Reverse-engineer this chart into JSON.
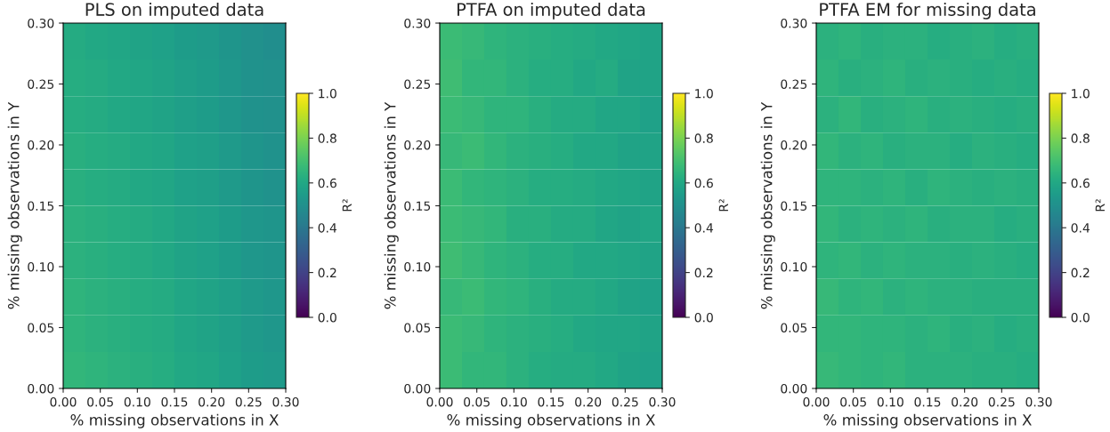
{
  "chart_data": [
    {
      "type": "heatmap",
      "title": "PLS on imputed data",
      "xlabel": "% missing observations in X",
      "ylabel": "% missing observations in Y",
      "clabel": "R²",
      "x": [
        0.015,
        0.045,
        0.075,
        0.105,
        0.135,
        0.165,
        0.195,
        0.225,
        0.255,
        0.285
      ],
      "y": [
        0.285,
        0.255,
        0.225,
        0.195,
        0.165,
        0.135,
        0.105,
        0.075,
        0.045,
        0.015
      ],
      "cells": [
        [
          0.61,
          0.6,
          0.59,
          0.58,
          0.57,
          0.55,
          0.54,
          0.52,
          0.5,
          0.49
        ],
        [
          0.62,
          0.61,
          0.6,
          0.59,
          0.58,
          0.56,
          0.55,
          0.53,
          0.51,
          0.5
        ],
        [
          0.62,
          0.61,
          0.6,
          0.59,
          0.58,
          0.56,
          0.55,
          0.53,
          0.51,
          0.5
        ],
        [
          0.63,
          0.62,
          0.61,
          0.6,
          0.59,
          0.57,
          0.56,
          0.54,
          0.52,
          0.51
        ],
        [
          0.63,
          0.62,
          0.61,
          0.6,
          0.59,
          0.57,
          0.56,
          0.54,
          0.52,
          0.51
        ],
        [
          0.64,
          0.63,
          0.62,
          0.61,
          0.6,
          0.58,
          0.57,
          0.55,
          0.53,
          0.52
        ],
        [
          0.64,
          0.63,
          0.62,
          0.61,
          0.6,
          0.58,
          0.57,
          0.55,
          0.53,
          0.52
        ],
        [
          0.65,
          0.64,
          0.63,
          0.62,
          0.61,
          0.59,
          0.58,
          0.56,
          0.54,
          0.53
        ],
        [
          0.65,
          0.64,
          0.63,
          0.62,
          0.61,
          0.59,
          0.58,
          0.56,
          0.54,
          0.53
        ],
        [
          0.66,
          0.65,
          0.64,
          0.63,
          0.62,
          0.6,
          0.59,
          0.57,
          0.55,
          0.54
        ]
      ],
      "clim": [
        0,
        1
      ],
      "cticks": [
        {
          "value": 0,
          "label": "0.0"
        },
        {
          "value": 0.2,
          "label": "0.2"
        },
        {
          "value": 0.4,
          "label": "0.4"
        },
        {
          "value": 0.6,
          "label": "0.6"
        },
        {
          "value": 0.8,
          "label": "0.8"
        },
        {
          "value": 1,
          "label": "1.0"
        }
      ],
      "xlim": [
        0,
        0.3
      ],
      "ylim": [
        0,
        0.3
      ],
      "xticks": [
        {
          "value": 0,
          "label": "0.00"
        },
        {
          "value": 0.05,
          "label": "0.05"
        },
        {
          "value": 0.1,
          "label": "0.10"
        },
        {
          "value": 0.15,
          "label": "0.15"
        },
        {
          "value": 0.2,
          "label": "0.20"
        },
        {
          "value": 0.25,
          "label": "0.25"
        },
        {
          "value": 0.3,
          "label": "0.30"
        }
      ],
      "yticks": [
        {
          "value": 0,
          "label": "0.00"
        },
        {
          "value": 0.05,
          "label": "0.05"
        },
        {
          "value": 0.1,
          "label": "0.10"
        },
        {
          "value": 0.15,
          "label": "0.15"
        },
        {
          "value": 0.2,
          "label": "0.20"
        },
        {
          "value": 0.25,
          "label": "0.25"
        },
        {
          "value": 0.3,
          "label": "0.30"
        }
      ]
    },
    {
      "type": "heatmap",
      "title": "PTFA on imputed data",
      "xlabel": "% missing observations in X",
      "ylabel": "% missing observations in Y",
      "clabel": "R²",
      "x": [
        0.015,
        0.045,
        0.075,
        0.105,
        0.135,
        0.165,
        0.195,
        0.225,
        0.255,
        0.285
      ],
      "y": [
        0.285,
        0.255,
        0.225,
        0.195,
        0.165,
        0.135,
        0.105,
        0.075,
        0.045,
        0.015
      ],
      "cells": [
        [
          0.68,
          0.67,
          0.65,
          0.64,
          0.63,
          0.62,
          0.61,
          0.6,
          0.59,
          0.58
        ],
        [
          0.69,
          0.66,
          0.66,
          0.64,
          0.62,
          0.62,
          0.6,
          0.61,
          0.58,
          0.58
        ],
        [
          0.68,
          0.67,
          0.65,
          0.65,
          0.63,
          0.61,
          0.61,
          0.59,
          0.59,
          0.57
        ],
        [
          0.67,
          0.68,
          0.66,
          0.64,
          0.63,
          0.62,
          0.6,
          0.6,
          0.58,
          0.58
        ],
        [
          0.68,
          0.66,
          0.65,
          0.64,
          0.62,
          0.62,
          0.61,
          0.6,
          0.59,
          0.58
        ],
        [
          0.68,
          0.67,
          0.66,
          0.63,
          0.63,
          0.61,
          0.61,
          0.59,
          0.58,
          0.59
        ],
        [
          0.69,
          0.67,
          0.65,
          0.64,
          0.62,
          0.62,
          0.6,
          0.6,
          0.59,
          0.58
        ],
        [
          0.67,
          0.68,
          0.66,
          0.65,
          0.63,
          0.61,
          0.61,
          0.6,
          0.58,
          0.57
        ],
        [
          0.68,
          0.67,
          0.65,
          0.64,
          0.63,
          0.62,
          0.6,
          0.59,
          0.59,
          0.58
        ],
        [
          0.68,
          0.66,
          0.66,
          0.64,
          0.62,
          0.61,
          0.61,
          0.6,
          0.58,
          0.57
        ]
      ],
      "clim": [
        0,
        1
      ],
      "cticks": [
        {
          "value": 0,
          "label": "0.0"
        },
        {
          "value": 0.2,
          "label": "0.2"
        },
        {
          "value": 0.4,
          "label": "0.4"
        },
        {
          "value": 0.6,
          "label": "0.6"
        },
        {
          "value": 0.8,
          "label": "0.8"
        },
        {
          "value": 1,
          "label": "1.0"
        }
      ],
      "xlim": [
        0,
        0.3
      ],
      "ylim": [
        0,
        0.3
      ],
      "xticks": [
        {
          "value": 0,
          "label": "0.00"
        },
        {
          "value": 0.05,
          "label": "0.05"
        },
        {
          "value": 0.1,
          "label": "0.10"
        },
        {
          "value": 0.15,
          "label": "0.15"
        },
        {
          "value": 0.2,
          "label": "0.20"
        },
        {
          "value": 0.25,
          "label": "0.25"
        },
        {
          "value": 0.3,
          "label": "0.30"
        }
      ],
      "yticks": [
        {
          "value": 0,
          "label": "0.00"
        },
        {
          "value": 0.05,
          "label": "0.05"
        },
        {
          "value": 0.1,
          "label": "0.10"
        },
        {
          "value": 0.15,
          "label": "0.15"
        },
        {
          "value": 0.2,
          "label": "0.20"
        },
        {
          "value": 0.25,
          "label": "0.25"
        },
        {
          "value": 0.3,
          "label": "0.30"
        }
      ]
    },
    {
      "type": "heatmap",
      "title": "PTFA EM for missing data",
      "xlabel": "% missing observations in X",
      "ylabel": "% missing observations in Y",
      "clabel": "R²",
      "x": [
        0.015,
        0.045,
        0.075,
        0.105,
        0.135,
        0.165,
        0.195,
        0.225,
        0.255,
        0.285
      ],
      "y": [
        0.285,
        0.255,
        0.225,
        0.195,
        0.165,
        0.135,
        0.105,
        0.075,
        0.045,
        0.015
      ],
      "cells": [
        [
          0.64,
          0.65,
          0.63,
          0.64,
          0.64,
          0.62,
          0.63,
          0.64,
          0.62,
          0.63
        ],
        [
          0.65,
          0.63,
          0.64,
          0.65,
          0.63,
          0.64,
          0.63,
          0.62,
          0.63,
          0.62
        ],
        [
          0.64,
          0.66,
          0.63,
          0.64,
          0.65,
          0.63,
          0.64,
          0.63,
          0.62,
          0.63
        ],
        [
          0.66,
          0.64,
          0.65,
          0.63,
          0.64,
          0.64,
          0.62,
          0.64,
          0.63,
          0.62
        ],
        [
          0.65,
          0.65,
          0.64,
          0.65,
          0.63,
          0.65,
          0.64,
          0.63,
          0.64,
          0.63
        ],
        [
          0.66,
          0.64,
          0.65,
          0.64,
          0.65,
          0.63,
          0.64,
          0.64,
          0.62,
          0.63
        ],
        [
          0.65,
          0.66,
          0.64,
          0.65,
          0.64,
          0.64,
          0.63,
          0.64,
          0.63,
          0.62
        ],
        [
          0.67,
          0.65,
          0.66,
          0.64,
          0.65,
          0.64,
          0.64,
          0.63,
          0.63,
          0.63
        ],
        [
          0.66,
          0.66,
          0.65,
          0.65,
          0.64,
          0.65,
          0.63,
          0.64,
          0.62,
          0.63
        ],
        [
          0.67,
          0.66,
          0.65,
          0.66,
          0.64,
          0.64,
          0.64,
          0.63,
          0.63,
          0.62
        ]
      ],
      "clim": [
        0,
        1
      ],
      "cticks": [
        {
          "value": 0,
          "label": "0.0"
        },
        {
          "value": 0.2,
          "label": "0.2"
        },
        {
          "value": 0.4,
          "label": "0.4"
        },
        {
          "value": 0.6,
          "label": "0.6"
        },
        {
          "value": 0.8,
          "label": "0.8"
        },
        {
          "value": 1,
          "label": "1.0"
        }
      ],
      "xlim": [
        0,
        0.3
      ],
      "ylim": [
        0,
        0.3
      ],
      "xticks": [
        {
          "value": 0,
          "label": "0.00"
        },
        {
          "value": 0.05,
          "label": "0.05"
        },
        {
          "value": 0.1,
          "label": "0.10"
        },
        {
          "value": 0.15,
          "label": "0.15"
        },
        {
          "value": 0.2,
          "label": "0.20"
        },
        {
          "value": 0.25,
          "label": "0.25"
        },
        {
          "value": 0.3,
          "label": "0.30"
        }
      ],
      "yticks": [
        {
          "value": 0,
          "label": "0.00"
        },
        {
          "value": 0.05,
          "label": "0.05"
        },
        {
          "value": 0.1,
          "label": "0.10"
        },
        {
          "value": 0.15,
          "label": "0.15"
        },
        {
          "value": 0.2,
          "label": "0.20"
        },
        {
          "value": 0.25,
          "label": "0.25"
        },
        {
          "value": 0.3,
          "label": "0.30"
        }
      ]
    }
  ]
}
